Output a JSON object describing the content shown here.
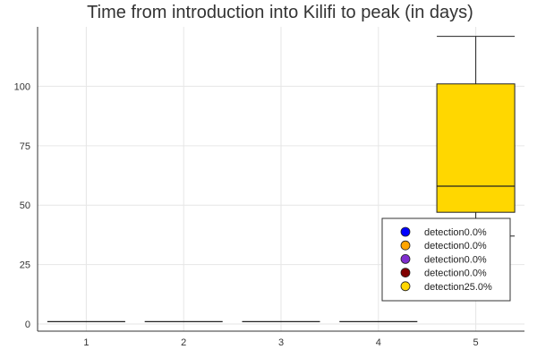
{
  "chart_data": {
    "type": "box",
    "title": "Time from introduction into Kilifi to peak (in days)",
    "xlabel": "",
    "ylabel": "",
    "categories": [
      "1",
      "2",
      "3",
      "4",
      "5"
    ],
    "x_ticks": [
      "1",
      "2",
      "3",
      "4",
      "5"
    ],
    "y_ticks": [
      0,
      25,
      50,
      75,
      100
    ],
    "ylim": [
      -3,
      125
    ],
    "grid": true,
    "legend_position": "bottom-right",
    "series": [
      {
        "name": "detection0.0%",
        "color": "#0000ff",
        "category": "1",
        "min": 1,
        "q1": 1,
        "median": 1,
        "q3": 1,
        "max": 1
      },
      {
        "name": "detection0.0%",
        "color": "#ffa500",
        "category": "2",
        "min": 1,
        "q1": 1,
        "median": 1,
        "q3": 1,
        "max": 1
      },
      {
        "name": "detection0.0%",
        "color": "#7f2fcf",
        "category": "3",
        "min": 1,
        "q1": 1,
        "median": 1,
        "q3": 1,
        "max": 1
      },
      {
        "name": "detection0.0%",
        "color": "#800000",
        "category": "4",
        "min": 1,
        "q1": 1,
        "median": 1,
        "q3": 1,
        "max": 1
      },
      {
        "name": "detection25.0%",
        "color": "#ffd700",
        "category": "5",
        "min": 37,
        "q1": 47,
        "median": 58,
        "q3": 101,
        "max": 121
      }
    ]
  }
}
